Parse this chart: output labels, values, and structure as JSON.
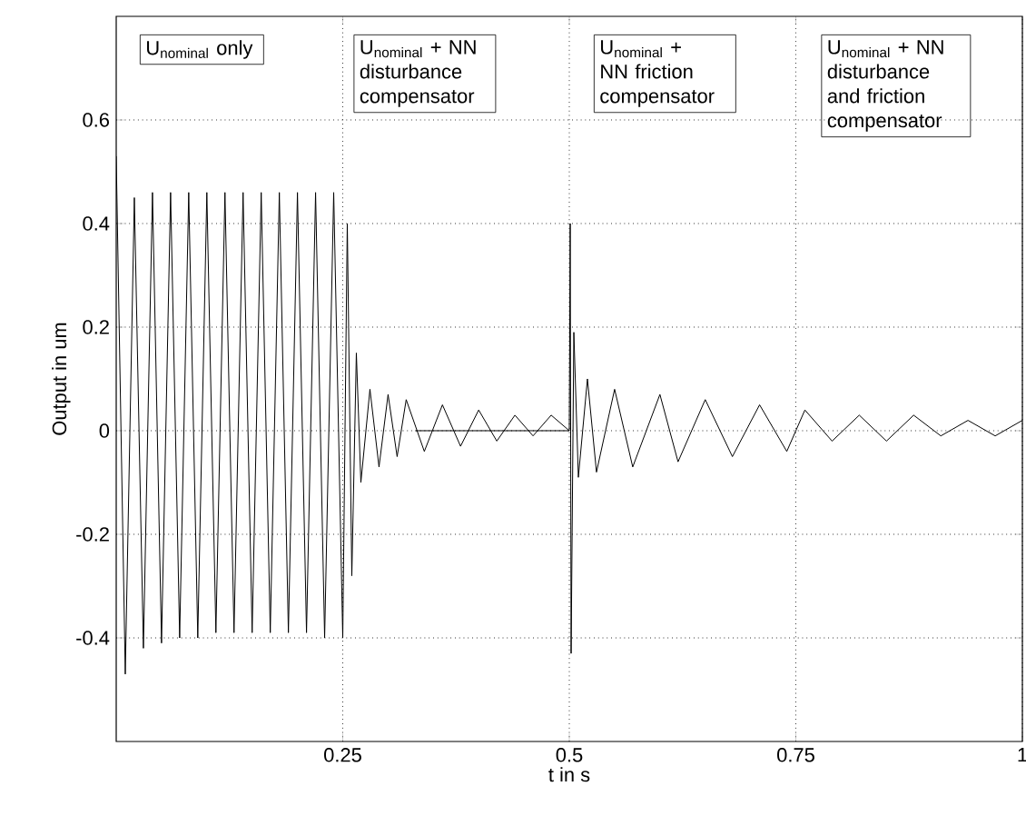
{
  "chart_data": {
    "type": "line",
    "xlabel": "t in s",
    "ylabel": "Output in um",
    "xlim": [
      0,
      1
    ],
    "ylim": [
      -0.6,
      0.8
    ],
    "xticks": [
      0.25,
      0.5,
      0.75,
      1
    ],
    "yticks": [
      -0.4,
      -0.2,
      0,
      0.2,
      0.4,
      0.6
    ],
    "grid": true,
    "annotations": [
      "U$_{nominal}$ only",
      "U$_{nominal}$ + NN disturbance compensator",
      "U$_{nominal}$ + NN friction compensator",
      "U$_{nominal}$ + NN disturbance and friction compensator"
    ],
    "series": [
      {
        "color": "#000000",
        "x": [
          0.0,
          0.01,
          0.02,
          0.03,
          0.04,
          0.05,
          0.06,
          0.07,
          0.08,
          0.09,
          0.1,
          0.11,
          0.12,
          0.13,
          0.14,
          0.15,
          0.16,
          0.17,
          0.18,
          0.19,
          0.2,
          0.21,
          0.22,
          0.23,
          0.24,
          0.25,
          0.255,
          0.26,
          0.265,
          0.27,
          0.28,
          0.29,
          0.3,
          0.31,
          0.32,
          0.34,
          0.36,
          0.38,
          0.4,
          0.42,
          0.44,
          0.46,
          0.48,
          0.5,
          0.501,
          0.502,
          0.505,
          0.51,
          0.52,
          0.53,
          0.55,
          0.57,
          0.6,
          0.62,
          0.65,
          0.68,
          0.71,
          0.74,
          0.76,
          0.79,
          0.82,
          0.85,
          0.88,
          0.91,
          0.94,
          0.97,
          1.0
        ],
        "values": [
          0.53,
          -0.47,
          0.45,
          -0.42,
          0.46,
          -0.41,
          0.46,
          -0.4,
          0.46,
          -0.4,
          0.46,
          -0.39,
          0.46,
          -0.39,
          0.46,
          -0.39,
          0.46,
          -0.39,
          0.46,
          -0.39,
          0.46,
          -0.39,
          0.46,
          -0.4,
          0.46,
          -0.4,
          0.4,
          -0.28,
          0.15,
          -0.1,
          0.08,
          -0.07,
          0.07,
          -0.05,
          0.06,
          -0.04,
          0.05,
          -0.03,
          0.04,
          -0.02,
          0.03,
          -0.01,
          0.03,
          0.0,
          0.4,
          -0.43,
          0.19,
          -0.09,
          0.1,
          -0.08,
          0.08,
          -0.07,
          0.07,
          -0.06,
          0.06,
          -0.05,
          0.05,
          -0.04,
          0.04,
          -0.02,
          0.03,
          -0.02,
          0.03,
          -0.01,
          0.02,
          -0.01,
          0.02
        ]
      },
      {
        "color": "#000000",
        "x": [
          0.33,
          0.5
        ],
        "values": [
          0,
          0
        ]
      }
    ]
  }
}
